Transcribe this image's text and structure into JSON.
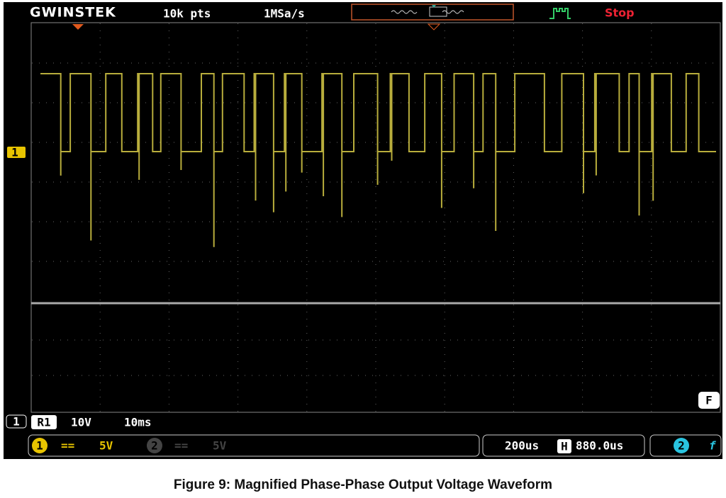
{
  "header": {
    "brand": "GWINSTEK",
    "record_length": "10k pts",
    "sample_rate": "1MSa/s",
    "run_state": "Stop",
    "channel_marker": "1"
  },
  "footer": {
    "function_key": "F",
    "ref_channel": "1",
    "ref_label": "R1",
    "ref_scale": "10V",
    "ref_time": "10ms",
    "ch1_number": "1",
    "ch1_coupling": "==",
    "ch1_scale": "5V",
    "ch2_number": "2",
    "ch2_coupling": "==",
    "ch2_scale": "5V",
    "timebase": "200us",
    "position_icon": "H",
    "position": "880.0us",
    "trigger_source": "2",
    "trigger_slope": "f"
  },
  "caption": "Figure 9: Magnified Phase-Phase Output Voltage Waveform"
}
